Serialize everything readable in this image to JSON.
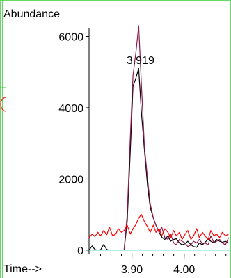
{
  "chart_data": {
    "type": "line",
    "ylabel": "Abundance",
    "xlabel": "Time-->",
    "x_ticks": [
      "3.90",
      "4.00"
    ],
    "y_ticks": [
      "0",
      "2000",
      "4000",
      "6000"
    ],
    "xlim": [
      3.818,
      4.087
    ],
    "ylim": [
      -100,
      6400
    ],
    "annotation": {
      "text": "3.919",
      "x": 3.919
    },
    "series": [
      {
        "color": "#000000",
        "points": [
          [
            3.818,
            0
          ],
          [
            3.824,
            120
          ],
          [
            3.829,
            20
          ],
          [
            3.835,
            0
          ],
          [
            3.84,
            10
          ],
          [
            3.846,
            160
          ],
          [
            3.852,
            20
          ],
          [
            3.857,
            0
          ],
          [
            3.863,
            0
          ],
          [
            3.869,
            0
          ],
          [
            3.874,
            0
          ],
          [
            3.88,
            0
          ],
          [
            3.885,
            0
          ],
          [
            3.891,
            800
          ],
          [
            3.897,
            2800
          ],
          [
            3.902,
            4600
          ],
          [
            3.907,
            4800
          ],
          [
            3.913,
            5100
          ],
          [
            3.918,
            3900
          ],
          [
            3.924,
            2800
          ],
          [
            3.93,
            1800
          ],
          [
            3.935,
            1200
          ],
          [
            3.941,
            900
          ],
          [
            3.946,
            700
          ],
          [
            3.952,
            500
          ],
          [
            3.958,
            350
          ],
          [
            3.963,
            300
          ],
          [
            3.969,
            400
          ],
          [
            3.974,
            250
          ],
          [
            3.98,
            300
          ],
          [
            3.985,
            320
          ],
          [
            3.991,
            200
          ],
          [
            3.996,
            150
          ],
          [
            4.002,
            180
          ],
          [
            4.007,
            250
          ],
          [
            4.013,
            150
          ],
          [
            4.018,
            100
          ],
          [
            4.024,
            80
          ],
          [
            4.029,
            200
          ],
          [
            4.035,
            150
          ],
          [
            4.04,
            220
          ],
          [
            4.046,
            300
          ],
          [
            4.051,
            250
          ],
          [
            4.057,
            200
          ],
          [
            4.062,
            300
          ],
          [
            4.068,
            250
          ],
          [
            4.073,
            220
          ],
          [
            4.079,
            250
          ],
          [
            4.085,
            200
          ]
        ]
      },
      {
        "color": "#8b1a4a",
        "points": [
          [
            3.818,
            0
          ],
          [
            3.83,
            0
          ],
          [
            3.845,
            0
          ],
          [
            3.86,
            0
          ],
          [
            3.874,
            0
          ],
          [
            3.885,
            0
          ],
          [
            3.891,
            1000
          ],
          [
            3.897,
            3200
          ],
          [
            3.902,
            4900
          ],
          [
            3.908,
            5600
          ],
          [
            3.913,
            6300
          ],
          [
            3.918,
            4700
          ],
          [
            3.924,
            2900
          ],
          [
            3.93,
            2000
          ],
          [
            3.935,
            1300
          ],
          [
            3.941,
            900
          ],
          [
            3.946,
            700
          ],
          [
            3.952,
            500
          ],
          [
            3.957,
            650
          ],
          [
            3.963,
            350
          ],
          [
            3.969,
            300
          ],
          [
            3.974,
            450
          ],
          [
            3.98,
            200
          ],
          [
            3.985,
            150
          ],
          [
            3.991,
            300
          ],
          [
            3.996,
            250
          ],
          [
            4.002,
            200
          ],
          [
            4.007,
            100
          ],
          [
            4.013,
            150
          ],
          [
            4.018,
            250
          ],
          [
            4.024,
            200
          ],
          [
            4.029,
            300
          ],
          [
            4.035,
            180
          ],
          [
            4.04,
            200
          ],
          [
            4.046,
            150
          ],
          [
            4.051,
            400
          ],
          [
            4.057,
            200
          ],
          [
            4.062,
            250
          ],
          [
            4.068,
            300
          ],
          [
            4.073,
            200
          ],
          [
            4.079,
            150
          ],
          [
            4.085,
            350
          ]
        ]
      },
      {
        "color": "#ff0000",
        "points": [
          [
            3.818,
            350
          ],
          [
            3.824,
            450
          ],
          [
            3.829,
            380
          ],
          [
            3.835,
            500
          ],
          [
            3.84,
            400
          ],
          [
            3.846,
            550
          ],
          [
            3.852,
            430
          ],
          [
            3.857,
            650
          ],
          [
            3.863,
            400
          ],
          [
            3.869,
            450
          ],
          [
            3.874,
            600
          ],
          [
            3.88,
            500
          ],
          [
            3.885,
            550
          ],
          [
            3.891,
            700
          ],
          [
            3.897,
            450
          ],
          [
            3.902,
            600
          ],
          [
            3.907,
            700
          ],
          [
            3.913,
            900
          ],
          [
            3.918,
            1000
          ],
          [
            3.924,
            800
          ],
          [
            3.93,
            650
          ],
          [
            3.935,
            500
          ],
          [
            3.941,
            700
          ],
          [
            3.946,
            500
          ],
          [
            3.952,
            600
          ],
          [
            3.957,
            400
          ],
          [
            3.963,
            600
          ],
          [
            3.969,
            500
          ],
          [
            3.974,
            350
          ],
          [
            3.98,
            550
          ],
          [
            3.985,
            400
          ],
          [
            3.991,
            500
          ],
          [
            3.996,
            300
          ],
          [
            4.002,
            450
          ],
          [
            4.007,
            550
          ],
          [
            4.013,
            300
          ],
          [
            4.018,
            400
          ],
          [
            4.024,
            600
          ],
          [
            4.029,
            350
          ],
          [
            4.035,
            500
          ],
          [
            4.04,
            400
          ],
          [
            4.046,
            300
          ],
          [
            4.051,
            550
          ],
          [
            4.057,
            400
          ],
          [
            4.062,
            450
          ],
          [
            4.068,
            350
          ],
          [
            4.073,
            500
          ],
          [
            4.079,
            400
          ],
          [
            4.085,
            450
          ]
        ]
      },
      {
        "color": "#66e0e0",
        "points": [
          [
            3.818,
            0
          ],
          [
            4.087,
            0
          ]
        ]
      }
    ]
  }
}
